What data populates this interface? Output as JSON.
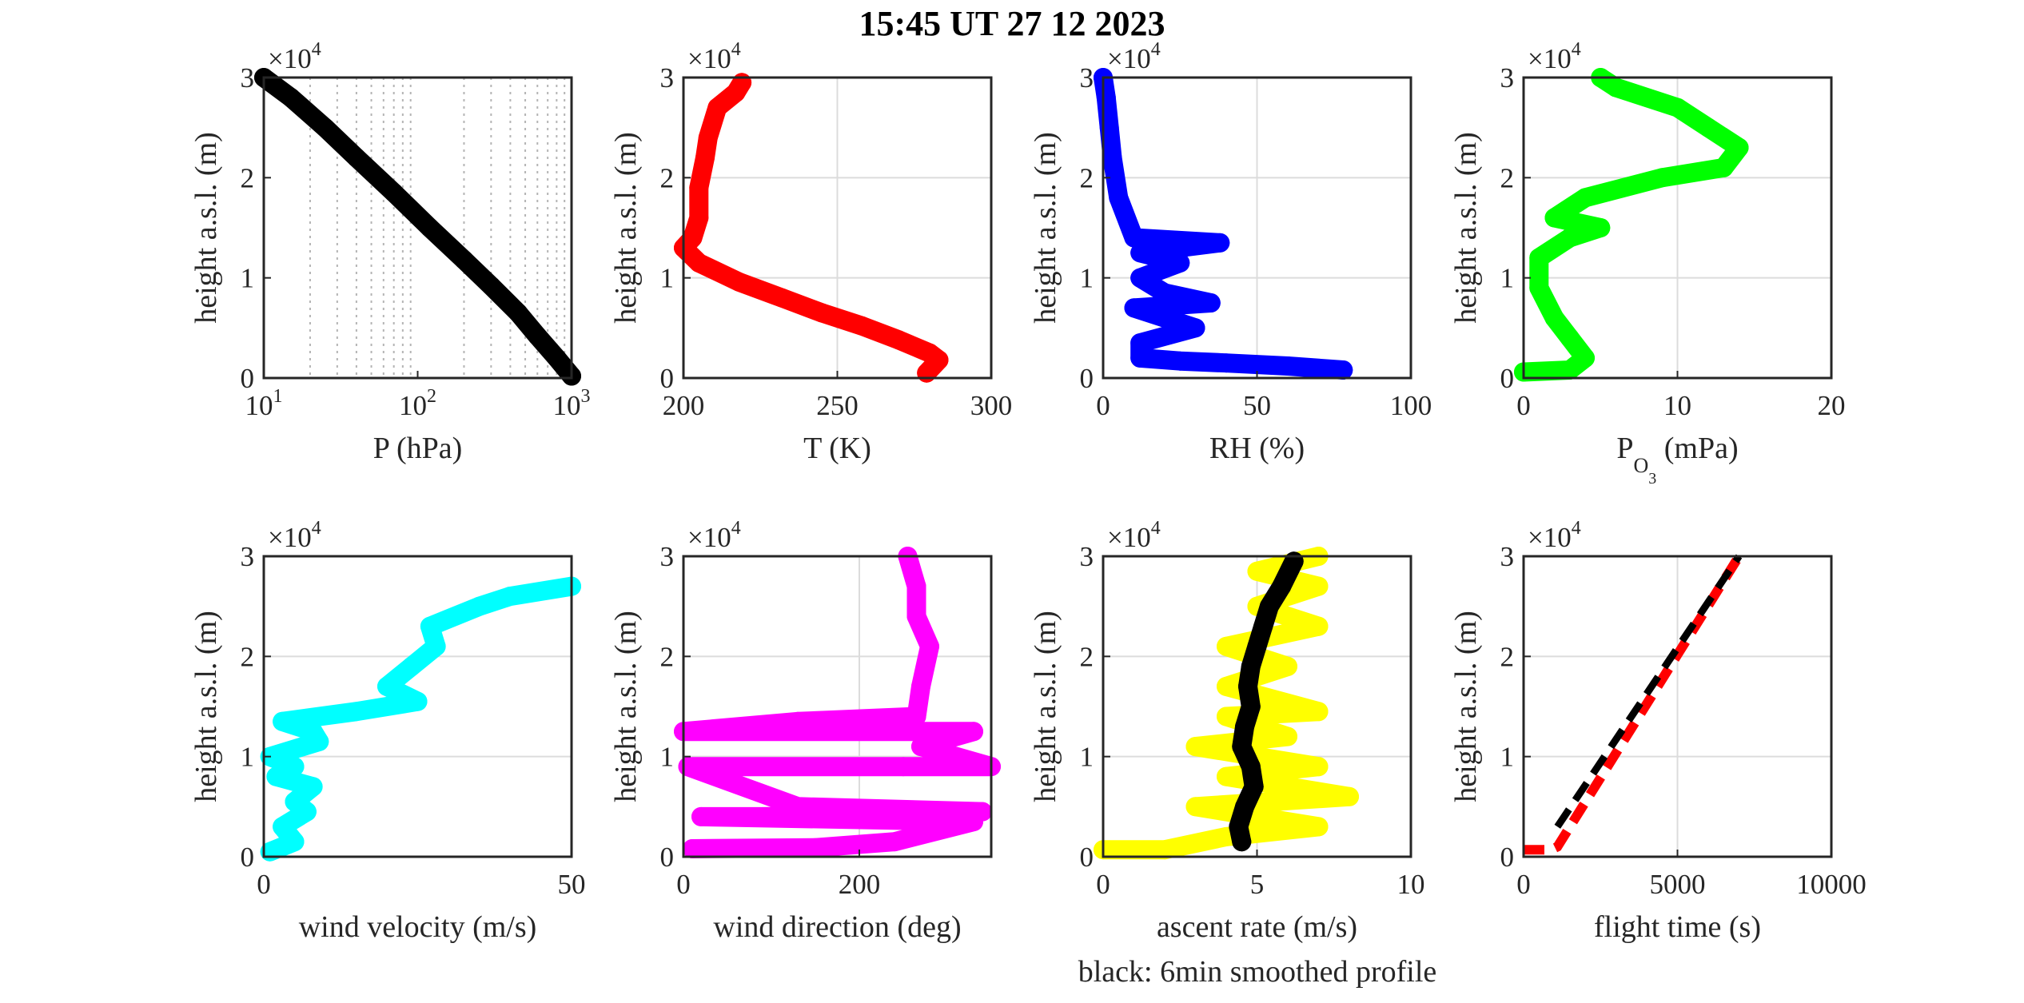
{
  "title": "15:45 UT  27 12 2023",
  "footnote": "black: 6min smoothed profile",
  "chart_data": [
    {
      "type": "scatter",
      "xlabel": "P (hPa)",
      "ylabel": "height a.s.l. (m)",
      "xscale": "log",
      "xlim": [
        10,
        1000
      ],
      "ylim": [
        0,
        30000
      ],
      "xticks": [
        "10^1",
        "10^2",
        "10^3"
      ],
      "yticks": [
        "0",
        "1",
        "2",
        "3"
      ],
      "y_multiplier": "×10^4",
      "grid": "log-minor-dotted",
      "series": [
        {
          "color": "#000000",
          "x": [
            1000,
            800,
            600,
            450,
            300,
            200,
            120,
            70,
            40,
            25,
            15,
            10
          ],
          "y": [
            200,
            2000,
            4200,
            6500,
            9200,
            11800,
            15000,
            18500,
            22000,
            25000,
            28000,
            30000
          ]
        }
      ]
    },
    {
      "type": "scatter",
      "xlabel": "T (K)",
      "ylabel": "height a.s.l. (m)",
      "xlim": [
        200,
        300
      ],
      "ylim": [
        0,
        30000
      ],
      "xticks": [
        "200",
        "250",
        "300"
      ],
      "yticks": [
        "0",
        "1",
        "2",
        "3"
      ],
      "y_multiplier": "×10^4",
      "grid": "on",
      "series": [
        {
          "color": "#ff0000",
          "x": [
            279,
            283,
            280,
            270,
            258,
            245,
            232,
            218,
            205,
            200,
            203,
            205,
            205,
            207,
            208,
            211,
            217,
            219
          ],
          "y": [
            500,
            1800,
            2500,
            3800,
            5200,
            6500,
            8000,
            9600,
            11500,
            13000,
            14000,
            16000,
            19000,
            22000,
            24000,
            27000,
            28500,
            29500
          ]
        }
      ]
    },
    {
      "type": "scatter",
      "xlabel": "RH (%)",
      "ylabel": "height a.s.l. (m)",
      "xlim": [
        0,
        100
      ],
      "ylim": [
        0,
        30000
      ],
      "xticks": [
        "0",
        "50",
        "100"
      ],
      "yticks": [
        "0",
        "1",
        "2",
        "3"
      ],
      "y_multiplier": "×10^4",
      "grid": "on",
      "series": [
        {
          "color": "#0000ff",
          "x": [
            78,
            60,
            40,
            25,
            12,
            12,
            30,
            20,
            10,
            35,
            20,
            12,
            25,
            12,
            38,
            10,
            5,
            3,
            2,
            1,
            0
          ],
          "y": [
            800,
            1200,
            1500,
            1700,
            2000,
            3500,
            5000,
            6000,
            7000,
            7500,
            8500,
            10000,
            11500,
            12500,
            13500,
            14000,
            18000,
            22000,
            25000,
            28000,
            30000
          ]
        }
      ]
    },
    {
      "type": "scatter",
      "xlabel": "P_O3 (mPa)",
      "ylabel": "height a.s.l. (m)",
      "xlim": [
        0,
        20
      ],
      "ylim": [
        0,
        30000
      ],
      "xticks": [
        "0",
        "10",
        "20"
      ],
      "yticks": [
        "0",
        "1",
        "2",
        "3"
      ],
      "y_multiplier": "×10^4",
      "grid": "on",
      "series": [
        {
          "color": "#00ff00",
          "x": [
            0,
            3,
            4,
            3,
            2,
            1,
            1,
            3,
            5,
            2,
            4,
            9,
            13,
            14,
            12,
            10,
            6,
            5
          ],
          "y": [
            600,
            800,
            2000,
            4000,
            6000,
            9000,
            12000,
            14000,
            15000,
            16000,
            18000,
            20000,
            21000,
            23000,
            25000,
            27000,
            29000,
            30000
          ]
        }
      ]
    },
    {
      "type": "scatter",
      "xlabel": "wind velocity (m/s)",
      "ylabel": "height a.s.l. (m)",
      "xlim": [
        0,
        50
      ],
      "ylim": [
        0,
        30000
      ],
      "xticks": [
        "0",
        "50"
      ],
      "yticks": [
        "0",
        "1",
        "2",
        "3"
      ],
      "y_multiplier": "×10^4",
      "grid": "on",
      "series": [
        {
          "color": "#00ffff",
          "x": [
            1,
            5,
            3,
            7,
            5,
            8,
            2,
            5,
            1,
            9,
            8,
            3,
            15,
            25,
            20,
            24,
            28,
            27,
            35,
            40,
            50
          ],
          "y": [
            500,
            1500,
            3000,
            4500,
            5500,
            7000,
            8000,
            9000,
            10000,
            11500,
            12500,
            13500,
            14500,
            15500,
            17000,
            19000,
            21000,
            23000,
            25000,
            26000,
            27000
          ]
        }
      ]
    },
    {
      "type": "scatter",
      "xlabel": "wind direction (deg)",
      "ylabel": "height a.s.l. (m)",
      "xlim": [
        0,
        350
      ],
      "ylim": [
        0,
        30000
      ],
      "xticks": [
        "0",
        "200"
      ],
      "yticks": [
        "0",
        "1",
        "2",
        "3"
      ],
      "y_multiplier": "×10^4",
      "grid": "on",
      "series": [
        {
          "color": "#ff00ff",
          "x": [
            10,
            150,
            240,
            330,
            20,
            90,
            340,
            130,
            5,
            250,
            350,
            270,
            330,
            0,
            130,
            265,
            270,
            280,
            265,
            265,
            255
          ],
          "y": [
            800,
            900,
            1500,
            3500,
            4000,
            4000,
            4500,
            5000,
            9000,
            9000,
            9000,
            11000,
            12500,
            12500,
            13500,
            14000,
            17000,
            21000,
            24000,
            27000,
            30000
          ]
        }
      ]
    },
    {
      "type": "scatter",
      "xlabel": "ascent rate (m/s)",
      "ylabel": "height a.s.l. (m)",
      "xlim": [
        0,
        10
      ],
      "ylim": [
        0,
        30000
      ],
      "xticks": [
        "0",
        "5",
        "10"
      ],
      "yticks": [
        "0",
        "1",
        "2",
        "3"
      ],
      "y_multiplier": "×10^4",
      "grid": "on",
      "series": [
        {
          "color": "#ffff00",
          "x": [
            0,
            2,
            4,
            7,
            3,
            8,
            4,
            7,
            3,
            6,
            4,
            7,
            4,
            6,
            4,
            7,
            5,
            7,
            5,
            7
          ],
          "y": [
            700,
            700,
            2000,
            3000,
            5000,
            6000,
            8000,
            9000,
            11000,
            12000,
            14000,
            14500,
            17000,
            19000,
            21000,
            23000,
            25000,
            27000,
            28500,
            30000
          ]
        },
        {
          "color": "#000000",
          "x": [
            4.5,
            4.4,
            4.6,
            4.9,
            4.8,
            4.5,
            4.6,
            4.8,
            4.7,
            4.8,
            5.0,
            5.2,
            5.4,
            5.8,
            6.2
          ],
          "y": [
            1500,
            3000,
            5000,
            7000,
            9000,
            11000,
            13000,
            15000,
            17000,
            19000,
            21000,
            23000,
            25000,
            27000,
            29500
          ]
        }
      ]
    },
    {
      "type": "line",
      "xlabel": "flight time (s)",
      "ylabel": "height a.s.l. (m)",
      "xlim": [
        0,
        10000
      ],
      "ylim": [
        0,
        30000
      ],
      "xticks": [
        "0",
        "5000",
        "10000"
      ],
      "yticks": [
        "0",
        "1",
        "2",
        "3"
      ],
      "y_multiplier": "×10^4",
      "grid": "on",
      "series": [
        {
          "color": "#ff0000",
          "style": "dashed",
          "x": [
            0,
            900,
            1100,
            7000
          ],
          "y": [
            700,
            700,
            1000,
            30000
          ]
        },
        {
          "color": "#000000",
          "style": "dashed",
          "x": [
            1100,
            7000
          ],
          "y": [
            3000,
            30000
          ]
        }
      ]
    }
  ]
}
